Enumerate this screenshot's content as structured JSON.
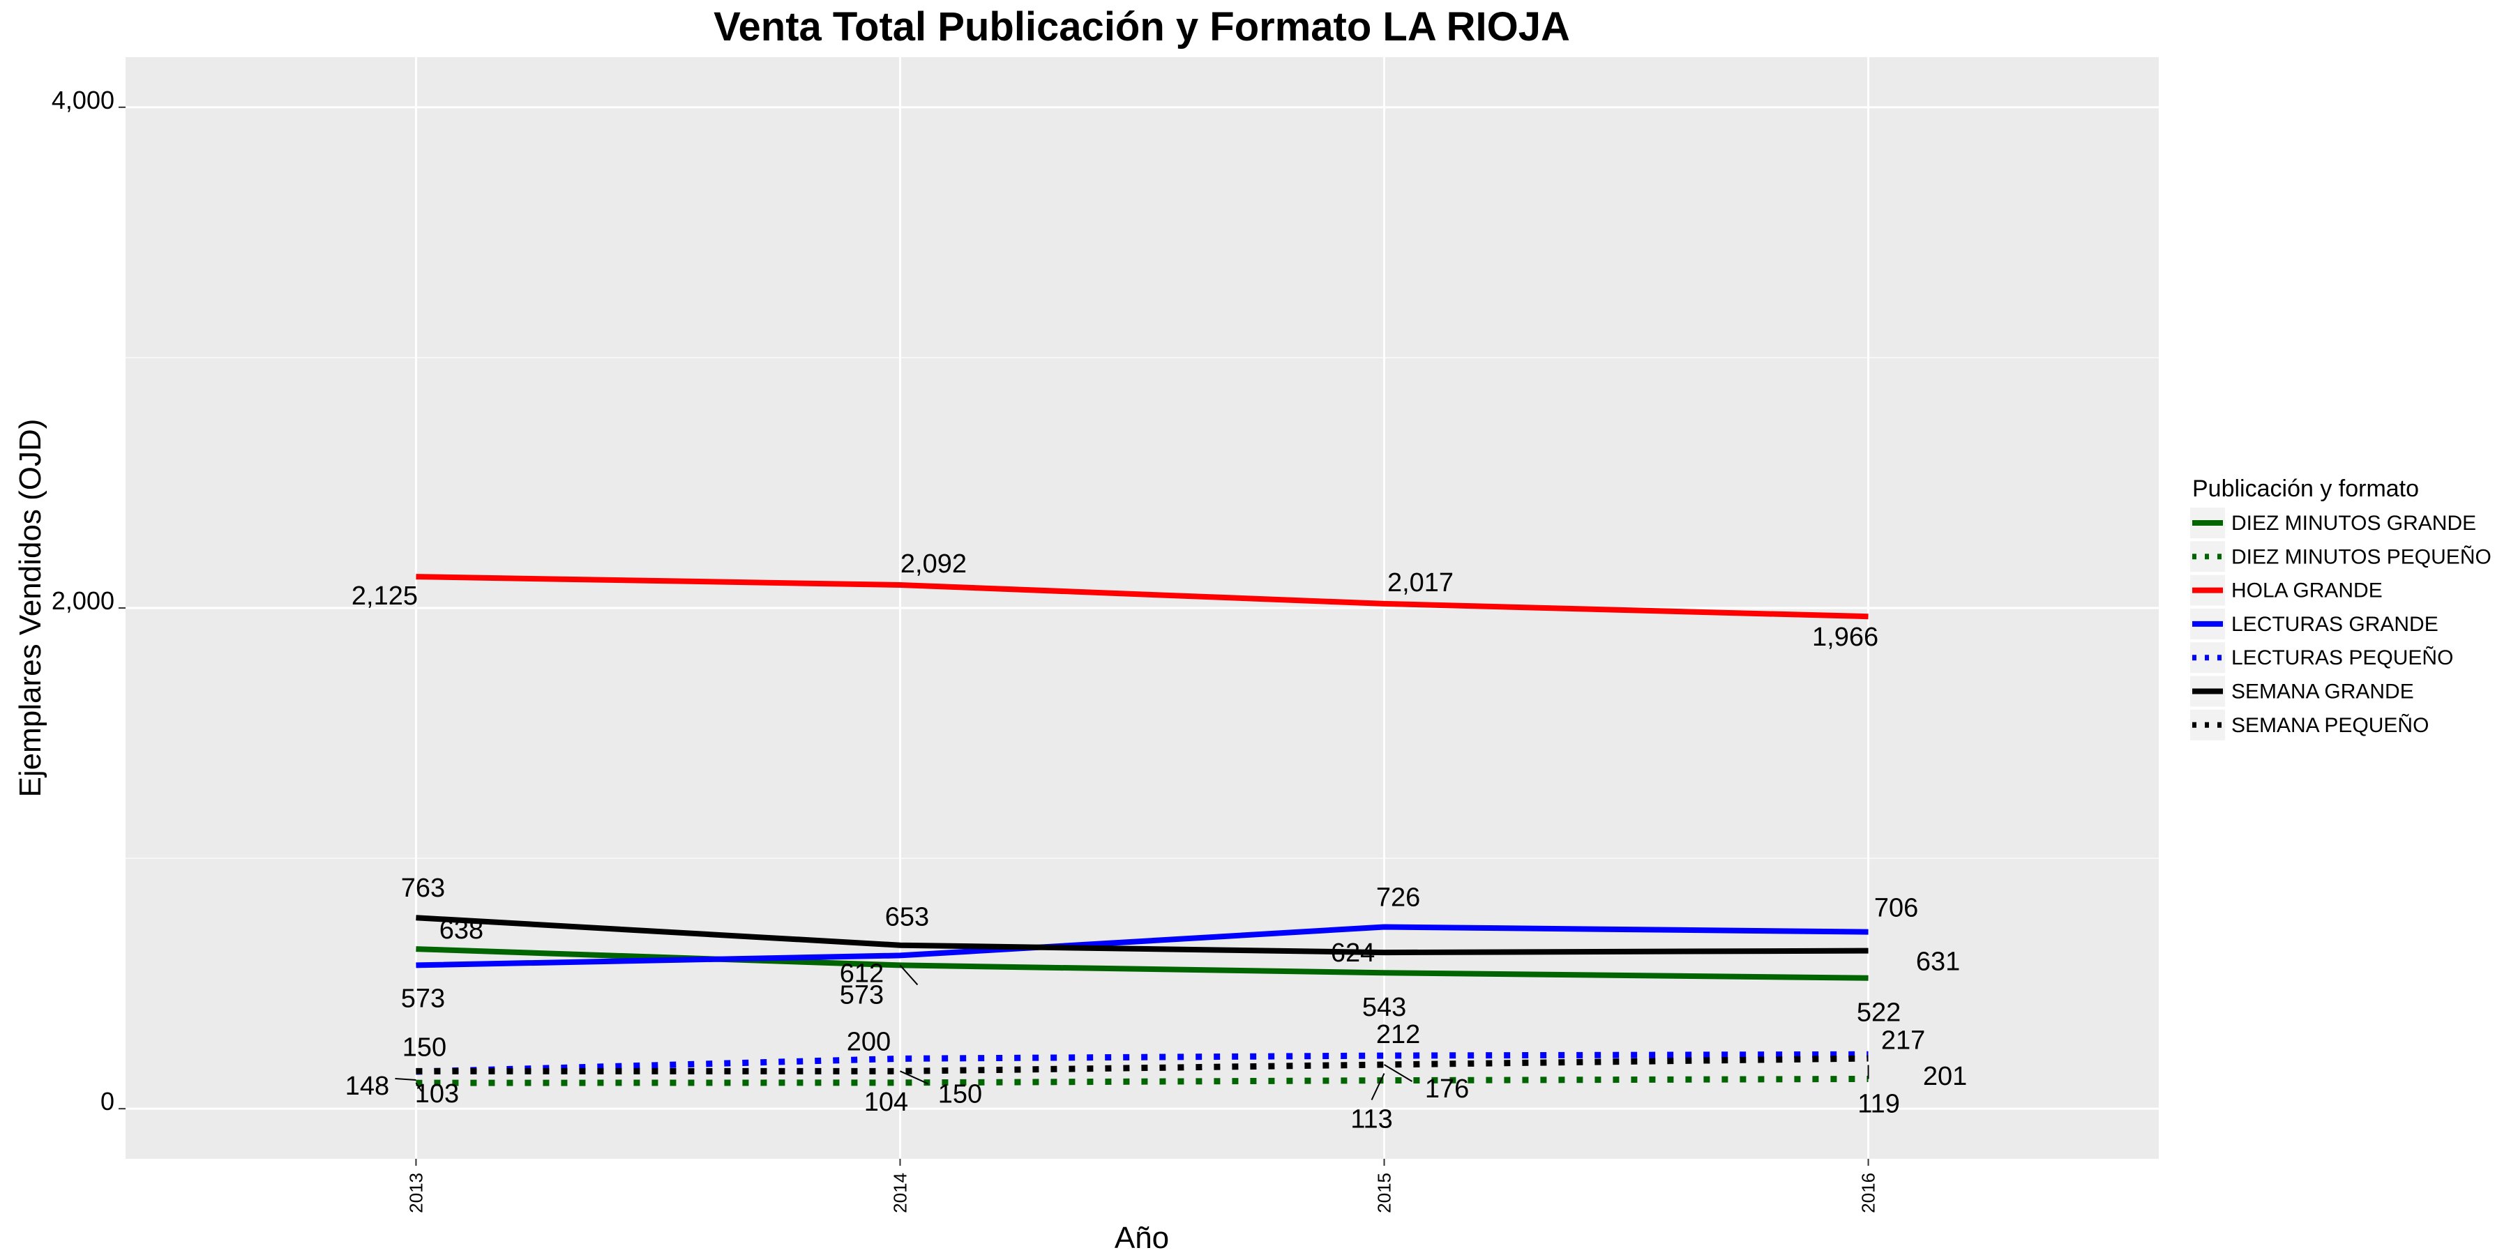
{
  "chart_data": {
    "type": "line",
    "title": "Venta Total Publicación y Formato  LA RIOJA",
    "xlabel": "Año",
    "ylabel": "Ejemplares Vendidos (OJD)",
    "x": [
      2013,
      2014,
      2015,
      2016
    ],
    "x_tick_labels": [
      "2013",
      "2014",
      "2015",
      "2016"
    ],
    "y_ticks": [
      0,
      2000,
      4000
    ],
    "y_tick_labels": [
      "0",
      "2,000",
      "4,000"
    ],
    "ylim": [
      -200,
      4200
    ],
    "xlim": [
      2012.4,
      2016.6
    ],
    "grid": true,
    "legend_position": "right",
    "legend_title": "Publicación y formato",
    "series": [
      {
        "name": "DIEZ MINUTOS GRANDE",
        "color": "#006400",
        "dash": "solid",
        "values": [
          638,
          573,
          543,
          522
        ],
        "labels": [
          "638",
          "573",
          "543",
          "522"
        ]
      },
      {
        "name": "DIEZ MINUTOS PEQUEÑO",
        "color": "#006400",
        "dash": "dotted",
        "values": [
          103,
          104,
          113,
          119
        ],
        "labels": [
          "103",
          "104",
          "113",
          "119"
        ]
      },
      {
        "name": "HOLA GRANDE",
        "color": "#ff0000",
        "dash": "solid",
        "values": [
          2125,
          2092,
          2017,
          1966
        ],
        "labels": [
          "2,125",
          "2,092",
          "2,017",
          "1,966"
        ]
      },
      {
        "name": "LECTURAS GRANDE",
        "color": "#0000ff",
        "dash": "solid",
        "values": [
          573,
          612,
          726,
          706
        ],
        "labels": [
          "573",
          "612",
          "726",
          "706"
        ]
      },
      {
        "name": "LECTURAS PEQUEÑO",
        "color": "#0000ff",
        "dash": "dotted",
        "values": [
          148,
          200,
          212,
          217
        ],
        "labels": [
          "148",
          "200",
          "212",
          "217"
        ]
      },
      {
        "name": "SEMANA GRANDE",
        "color": "#000000",
        "dash": "solid",
        "values": [
          763,
          653,
          624,
          631
        ],
        "labels": [
          "763",
          "653",
          "624",
          "631"
        ]
      },
      {
        "name": "SEMANA PEQUEÑO",
        "color": "#000000",
        "dash": "dotted",
        "values": [
          150,
          150,
          176,
          201
        ],
        "labels": [
          "150",
          "150",
          "176",
          "201"
        ]
      }
    ]
  }
}
